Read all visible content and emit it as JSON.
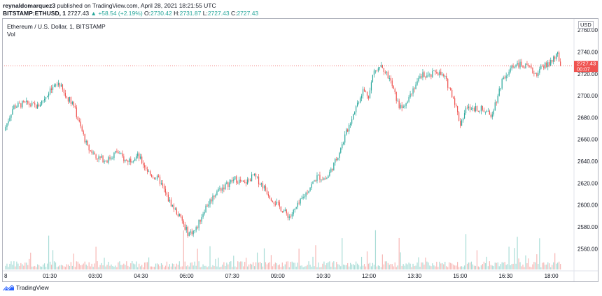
{
  "header": {
    "author": "reynaldomarquez3",
    "published_text": "published on TradingView.com, April 28, 2021 18:21:55 UTC",
    "symbol": "BITSTAMP:ETHUSD, 1",
    "last": "2727.43",
    "change": "+58.54 (+2.19%)",
    "o_label": "O:",
    "o_value": "2730.42",
    "h_label": "H:",
    "h_value": "2731.87",
    "l_label": "L:",
    "l_value": "2727.43",
    "c_label": "C:",
    "c_value": "2727.43"
  },
  "legend": {
    "title": "Ethereum / U.S. Dollar, 1, BITSTAMP",
    "vol": "Vol"
  },
  "price_axis": {
    "currency": "USD",
    "last_price": "2727.43",
    "countdown": "00:07"
  },
  "colors": {
    "up": "#26a69a",
    "down": "#ef5350",
    "last_price_tag": "#ef5350",
    "vol_up": "#a8dcd6",
    "vol_down": "#f7b7b5"
  },
  "footer": {
    "brand": "TradingView",
    "logo_icon": "tradingview-logo-icon"
  },
  "chart_data": {
    "type": "candlestick",
    "title": "Ethereum / U.S. Dollar, 1, BITSTAMP",
    "x_tick_labels": [
      "8",
      "01:30",
      "03:00",
      "04:30",
      "06:00",
      "07:30",
      "09:00",
      "10:30",
      "12:00",
      "13:30",
      "15:00",
      "16:30",
      "18:00"
    ],
    "y_tick_values": [
      2560,
      2580,
      2600,
      2620,
      2640,
      2660,
      2680,
      2700,
      2720,
      2740,
      2760
    ],
    "y_tick_labels": [
      "2560.00",
      "2580.00",
      "2600.00",
      "2620.00",
      "2640.00",
      "2660.00",
      "2680.00",
      "2700.00",
      "2720.00",
      "2740.00",
      "2760.00"
    ],
    "ylim": [
      2550,
      2762
    ],
    "last_price": 2727.43,
    "price_path": {
      "time_hours": [
        0,
        0.3,
        0.7,
        1.1,
        1.5,
        1.8,
        2.0,
        2.25,
        2.5,
        2.75,
        3.1,
        3.4,
        3.7,
        4.0,
        4.4,
        4.8,
        5.1,
        5.4,
        5.8,
        6.05,
        6.3,
        6.6,
        7.0,
        7.3,
        7.6,
        7.9,
        8.2,
        8.5,
        8.8,
        9.1,
        9.4,
        9.7,
        10.0,
        10.3,
        10.6,
        10.9,
        11.2,
        11.5,
        11.8,
        12.0,
        12.15,
        12.4,
        12.7,
        13.0,
        13.2,
        13.5,
        13.8,
        14.0,
        14.2,
        14.5,
        14.8,
        15.0,
        15.2,
        15.5,
        15.8,
        16.0,
        16.2,
        16.4,
        16.6,
        16.9,
        17.2,
        17.5,
        17.8,
        18.0,
        18.2,
        18.3
      ],
      "price": [
        2668,
        2690,
        2693,
        2690,
        2704,
        2712,
        2700,
        2694,
        2672,
        2652,
        2643,
        2641,
        2649,
        2640,
        2645,
        2628,
        2623,
        2605,
        2588,
        2574,
        2577,
        2597,
        2613,
        2618,
        2624,
        2619,
        2627,
        2618,
        2606,
        2597,
        2589,
        2601,
        2614,
        2626,
        2624,
        2640,
        2662,
        2685,
        2705,
        2700,
        2722,
        2729,
        2714,
        2689,
        2694,
        2709,
        2720,
        2717,
        2723,
        2716,
        2697,
        2674,
        2688,
        2689,
        2687,
        2681,
        2697,
        2716,
        2723,
        2729,
        2726,
        2720,
        2728,
        2730,
        2738,
        2727.43
      ]
    },
    "volume_spikes_hours": [
      1.45,
      5.9,
      11.1,
      12.2,
      13.0,
      15.2,
      16.9,
      17.6
    ]
  }
}
